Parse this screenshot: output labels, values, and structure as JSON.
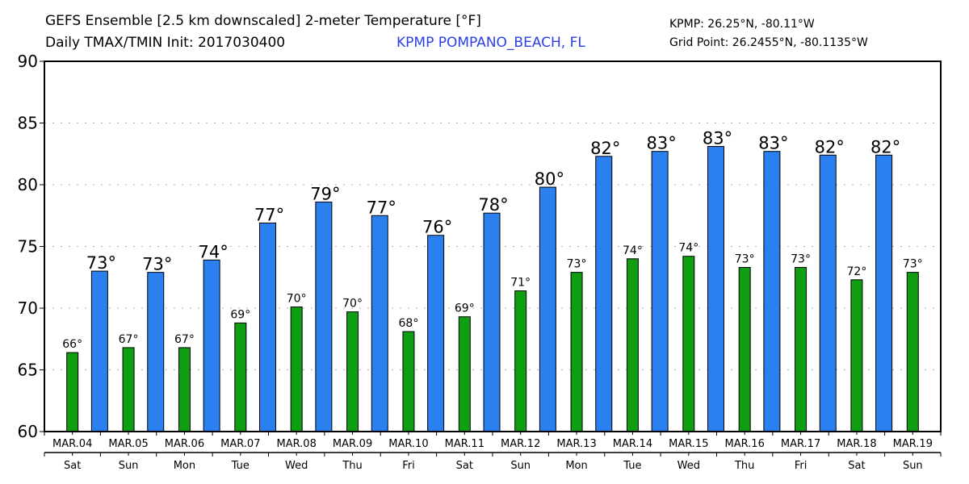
{
  "header": {
    "title_line1": "GEFS Ensemble [2.5 km downscaled] 2-meter Temperature [°F]",
    "title_line2": "Daily TMAX/TMIN Init: 2017030400",
    "station": "KPMP POMPANO_BEACH, FL",
    "station_coord": "KPMP: 26.25°N, -80.11°W",
    "grid_point": "Grid Point: 26.2455°N, -80.1135°W"
  },
  "colors": {
    "tmax": "#2a80ee",
    "tmin": "#0f9e12",
    "station_text": "#2b3fe8",
    "grid": "#b0b0b0"
  },
  "chart_data": {
    "type": "bar",
    "title": "GEFS Ensemble [2.5 km downscaled] 2-meter Temperature [°F] — Daily TMAX/TMIN Init: 2017030400",
    "xlabel": "",
    "ylabel": "",
    "ylim": [
      60,
      90
    ],
    "yticks": [
      60,
      65,
      70,
      75,
      80,
      85,
      90
    ],
    "grid": true,
    "categories": [
      "MAR.04",
      "MAR.05",
      "MAR.06",
      "MAR.07",
      "MAR.08",
      "MAR.09",
      "MAR.10",
      "MAR.11",
      "MAR.12",
      "MAR.13",
      "MAR.14",
      "MAR.15",
      "MAR.16",
      "MAR.17",
      "MAR.18",
      "MAR.19"
    ],
    "weekdays": [
      "Sat",
      "Sun",
      "Mon",
      "Tue",
      "Wed",
      "Thu",
      "Fri",
      "Sat",
      "Sun",
      "Mon",
      "Tue",
      "Wed",
      "Thu",
      "Fri",
      "Sat",
      "Sun"
    ],
    "series": [
      {
        "name": "TMIN",
        "color": "#0f9e12",
        "values": [
          66.4,
          66.8,
          66.8,
          68.8,
          70.1,
          69.7,
          68.1,
          69.3,
          71.4,
          72.9,
          74.0,
          74.2,
          73.3,
          73.3,
          72.3,
          72.9
        ],
        "labels": [
          "66°",
          "67°",
          "67°",
          "69°",
          "70°",
          "70°",
          "68°",
          "69°",
          "71°",
          "73°",
          "74°",
          "74°",
          "73°",
          "73°",
          "72°",
          "73°"
        ]
      },
      {
        "name": "TMAX",
        "color": "#2a80ee",
        "values": [
          73.0,
          72.9,
          73.9,
          76.9,
          78.6,
          77.5,
          75.9,
          77.7,
          79.8,
          82.3,
          82.7,
          83.1,
          82.7,
          82.4,
          82.4
        ],
        "labels": [
          "73°",
          "73°",
          "74°",
          "77°",
          "79°",
          "77°",
          "76°",
          "78°",
          "80°",
          "82°",
          "83°",
          "83°",
          "83°",
          "82°",
          "82°"
        ]
      }
    ]
  }
}
